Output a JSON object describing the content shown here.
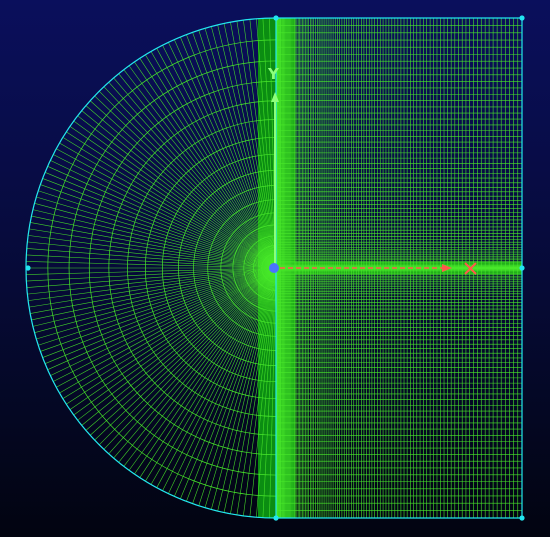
{
  "viewport": {
    "background_top": "#0a0f5c",
    "background_bottom": "#020410"
  },
  "mesh": {
    "boundary_color": "#22e5f0",
    "line_color": "#48e82a",
    "fill_color": "#0b8d12",
    "vertex_color": "#22e5f0",
    "radial_divisions": 120,
    "arc_layers": 18,
    "channel_vertical_lines": 110,
    "channel_horizontal_lines": 60
  },
  "triad": {
    "y_label": "Y",
    "x_label": "X",
    "y_axis_color": "#8cff7a",
    "x_axis_color": "#ff5a4a",
    "x_marker_color": "#ff5a4a",
    "origin_color": "#4a73ff",
    "origin_icon": "origin-point-icon",
    "x_marker_icon": "cross-marker-icon",
    "y_arrow_icon": "arrow-up-icon",
    "x_arrow_icon": "arrow-right-icon"
  }
}
